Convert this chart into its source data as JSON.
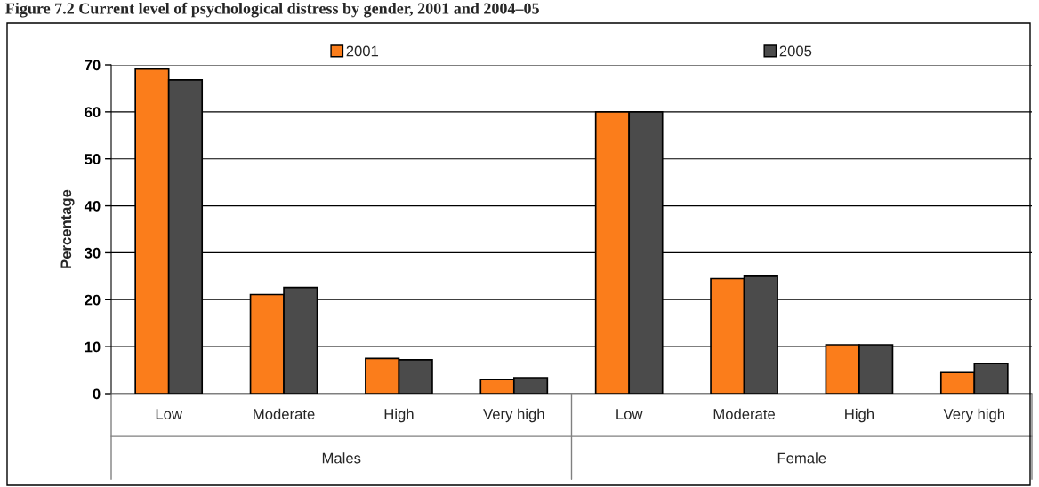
{
  "chart_data": {
    "type": "bar",
    "title": "Figure 7.2 Current level of psychological distress by gender, 2001 and 2004–05",
    "ylabel": "Percentage",
    "categories": [
      "Low",
      "Moderate",
      "High",
      "Very high",
      "Low",
      "Moderate",
      "High",
      "Very high"
    ],
    "annotations": [
      "Males",
      "Female"
    ],
    "series": [
      {
        "name": "2001",
        "color": "#fb7d1b",
        "values": [
          69.1,
          21.1,
          7.5,
          3.0,
          60,
          24.5,
          10.4,
          4.5
        ]
      },
      {
        "name": "2005",
        "color": "#4b4b4b",
        "values": [
          66.8,
          22.6,
          7.2,
          3.4,
          60,
          25.0,
          10.4,
          6.4
        ]
      }
    ],
    "ylim": [
      0,
      70
    ],
    "yticks": [
      0,
      10,
      20,
      30,
      40,
      50,
      60,
      70
    ],
    "grid": "y",
    "legend": "top"
  }
}
